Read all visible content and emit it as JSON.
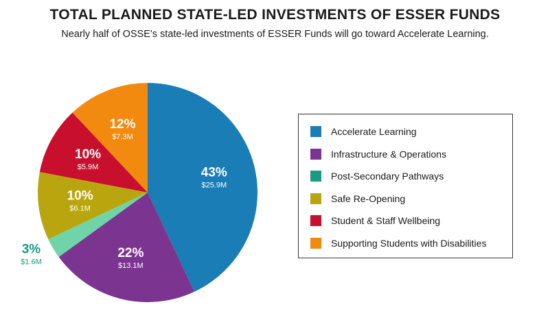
{
  "title": "TOTAL PLANNED STATE-LED INVESTMENTS OF ESSER FUNDS",
  "subtitle": "Nearly half of OSSE's state-led investments of ESSER Funds will go toward Accelerate Learning.",
  "chart_data": {
    "type": "pie",
    "title": "TOTAL PLANNED STATE-LED INVESTMENTS OF ESSER FUNDS",
    "subtitle": "Nearly half of OSSE's state-led investments of ESSER Funds will go toward Accelerate Learning.",
    "legend_position": "right",
    "slices": [
      {
        "name": "Accelerate Learning",
        "percent": 43,
        "percent_label": "43%",
        "amount_label": "$25.9M",
        "color": "#1a7db5"
      },
      {
        "name": "Infrastructure & Operations",
        "percent": 22,
        "percent_label": "22%",
        "amount_label": "$13.1M",
        "color": "#7b3590"
      },
      {
        "name": "Post-Secondary Pathways",
        "percent": 3,
        "percent_label": "3%",
        "amount_label": "$1.6M",
        "color": "#6fd4a8"
      },
      {
        "name": "Safe Re-Opening",
        "percent": 10,
        "percent_label": "10%",
        "amount_label": "$6.1M",
        "color": "#b9a60f"
      },
      {
        "name": "Student & Staff Wellbeing",
        "percent": 10,
        "percent_label": "10%",
        "amount_label": "$5.9M",
        "color": "#c8102e"
      },
      {
        "name": "Supporting Students with Disabilities",
        "percent": 12,
        "percent_label": "12%",
        "amount_label": "$7.3M",
        "color": "#f28a0f"
      }
    ],
    "legend_swatch_colors": [
      "#1a7db5",
      "#7b3590",
      "#1a9a7f",
      "#b9a60f",
      "#c8102e",
      "#f28a0f"
    ],
    "outside_label_color": "#1a9a7f"
  }
}
